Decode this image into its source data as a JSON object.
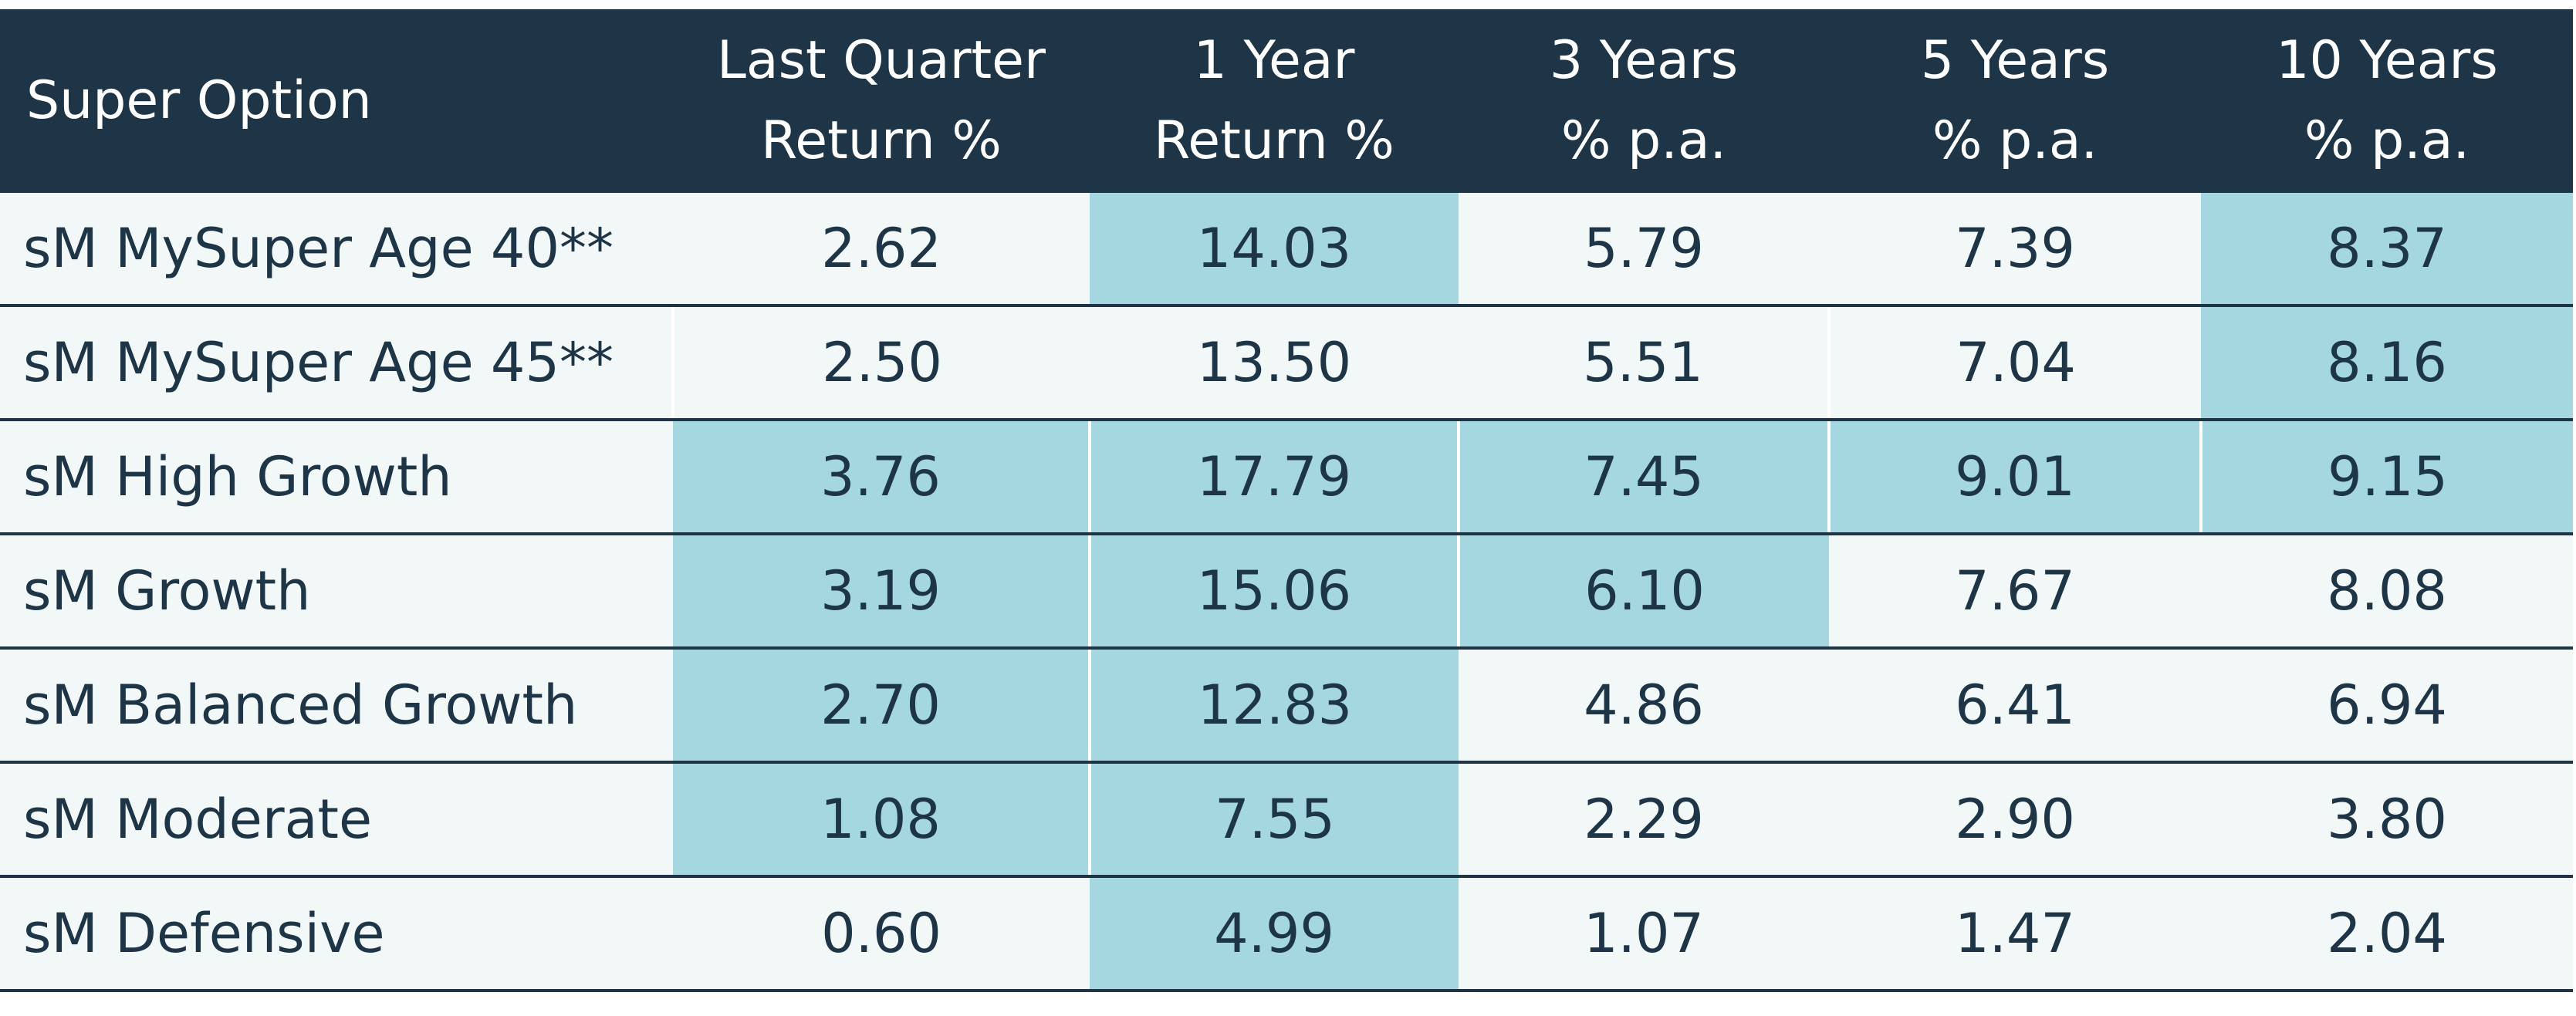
{
  "colors": {
    "header_bg": "#1d3547",
    "header_text": "#ffffff",
    "row_bg": "#f1f8f7",
    "highlight_bg": "#a5d7e1",
    "text": "#1d3547"
  },
  "chart_data": {
    "type": "table",
    "columns": [
      [
        "Super Option"
      ],
      [
        "Last Quarter",
        "Return %"
      ],
      [
        "1 Year",
        "Return %"
      ],
      [
        "3 Years",
        "% p.a."
      ],
      [
        "5 Years",
        "% p.a."
      ],
      [
        "10 Years",
        "% p.a."
      ]
    ],
    "rows": [
      {
        "option": "sM MySuper Age 40**",
        "values": [
          "2.62",
          "14.03",
          "5.79",
          "7.39",
          "8.37"
        ],
        "highlighted": [
          false,
          true,
          false,
          false,
          true
        ]
      },
      {
        "option": "sM MySuper Age 45**",
        "values": [
          "2.50",
          "13.50",
          "5.51",
          "7.04",
          "8.16"
        ],
        "highlighted": [
          false,
          false,
          false,
          false,
          true
        ]
      },
      {
        "option": "sM High Growth",
        "values": [
          "3.76",
          "17.79",
          "7.45",
          "9.01",
          "9.15"
        ],
        "highlighted": [
          true,
          true,
          true,
          true,
          true
        ]
      },
      {
        "option": "sM Growth",
        "values": [
          "3.19",
          "15.06",
          "6.10",
          "7.67",
          "8.08"
        ],
        "highlighted": [
          true,
          true,
          true,
          false,
          false
        ]
      },
      {
        "option": "sM Balanced Growth",
        "values": [
          "2.70",
          "12.83",
          "4.86",
          "6.41",
          "6.94"
        ],
        "highlighted": [
          true,
          true,
          false,
          false,
          false
        ]
      },
      {
        "option": "sM Moderate",
        "values": [
          "1.08",
          "7.55",
          "2.29",
          "2.90",
          "3.80"
        ],
        "highlighted": [
          true,
          true,
          false,
          false,
          false
        ]
      },
      {
        "option": "sM Defensive",
        "values": [
          "0.60",
          "4.99",
          "1.07",
          "1.47",
          "2.04"
        ],
        "highlighted": [
          false,
          true,
          false,
          false,
          false
        ]
      }
    ]
  }
}
